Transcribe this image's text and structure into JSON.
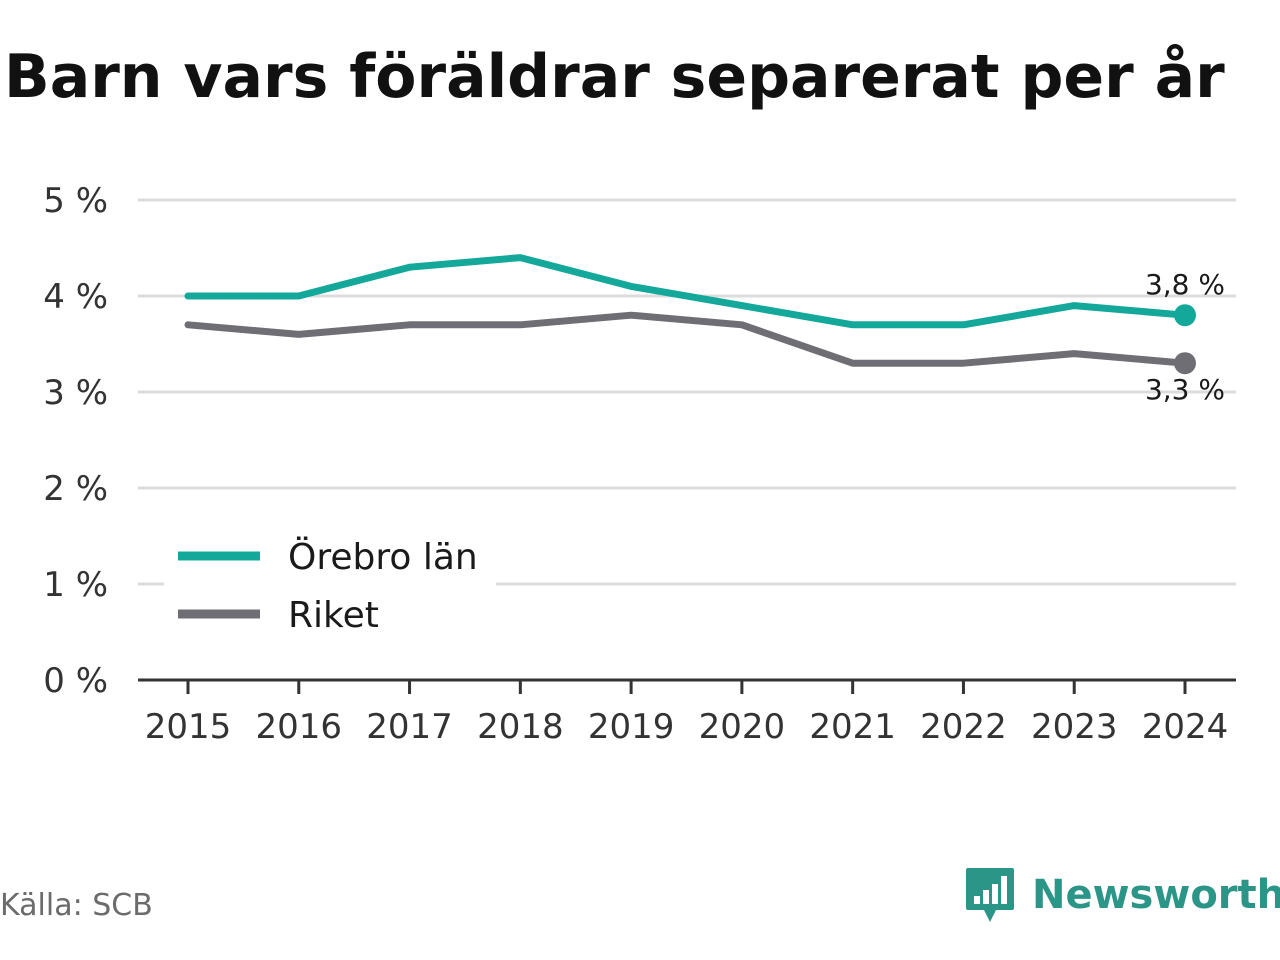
{
  "title": "Barn vars föräldrar separerat per år",
  "source": "Källa: SCB",
  "brand": {
    "name": "Newsworthy",
    "icon": "newsworthy-logo-icon"
  },
  "colors": {
    "orebro": "#14a89a",
    "riket": "#6f6e75",
    "grid": "#dcdcdc",
    "axis": "#333333",
    "brand": "#2b9688"
  },
  "chart_data": {
    "type": "line",
    "title": "Barn vars föräldrar separerat per år",
    "xlabel": "",
    "ylabel": "",
    "x": [
      "2015",
      "2016",
      "2017",
      "2018",
      "2019",
      "2020",
      "2021",
      "2022",
      "2023",
      "2024"
    ],
    "ylim": [
      0,
      5
    ],
    "yticks": [
      0,
      1,
      2,
      3,
      4,
      5
    ],
    "ytick_labels": [
      "0 %",
      "1 %",
      "2 %",
      "3 %",
      "4 %",
      "5 %"
    ],
    "grid": true,
    "legend_position": "bottom-left",
    "series": [
      {
        "name": "Örebro län",
        "color": "#14a89a",
        "values": [
          4.0,
          4.0,
          4.3,
          4.4,
          4.1,
          3.9,
          3.7,
          3.7,
          3.9,
          3.8
        ],
        "end_label": "3,8 %"
      },
      {
        "name": "Riket",
        "color": "#6f6e75",
        "values": [
          3.7,
          3.6,
          3.7,
          3.7,
          3.8,
          3.7,
          3.3,
          3.3,
          3.4,
          3.3
        ],
        "end_label": "3,3 %"
      }
    ]
  }
}
